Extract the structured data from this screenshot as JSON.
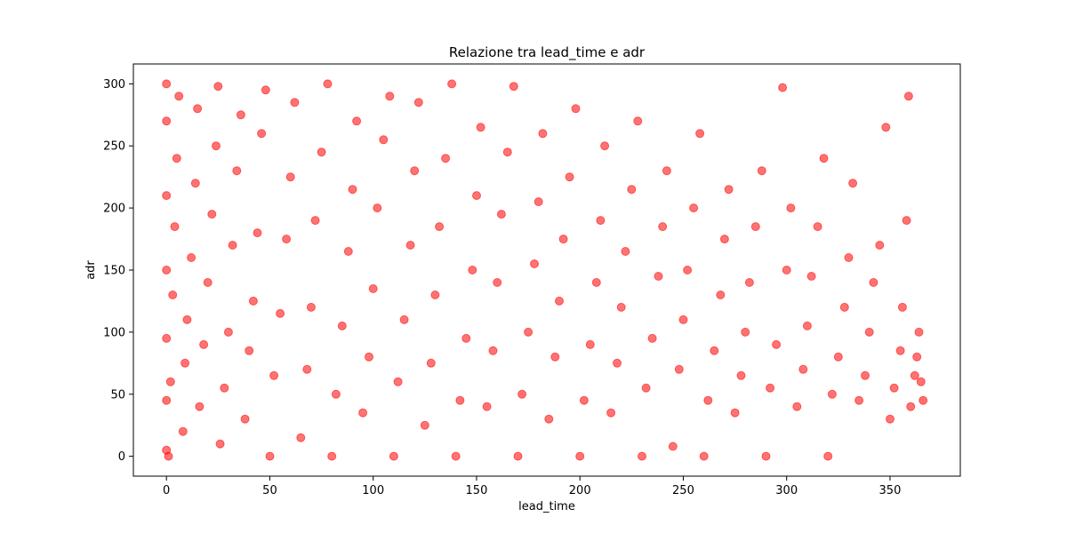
{
  "chart_data": {
    "type": "scatter",
    "title": "Relazione tra lead_time e adr",
    "xlabel": "lead_time",
    "ylabel": "adr",
    "xlim": [
      -16,
      384
    ],
    "ylim": [
      -16,
      316
    ],
    "xticks": [
      0,
      50,
      100,
      150,
      200,
      250,
      300,
      350
    ],
    "yticks": [
      0,
      50,
      100,
      150,
      200,
      250,
      300
    ],
    "grid": false,
    "legend": "none",
    "marker_color": "#ff0000",
    "marker_alpha": 0.55,
    "series": [
      {
        "name": "",
        "points": [
          [
            0,
            5
          ],
          [
            0,
            45
          ],
          [
            0,
            95
          ],
          [
            0,
            150
          ],
          [
            0,
            210
          ],
          [
            0,
            270
          ],
          [
            0,
            300
          ],
          [
            1,
            0
          ],
          [
            2,
            60
          ],
          [
            3,
            130
          ],
          [
            4,
            185
          ],
          [
            5,
            240
          ],
          [
            6,
            290
          ],
          [
            8,
            20
          ],
          [
            9,
            75
          ],
          [
            10,
            110
          ],
          [
            12,
            160
          ],
          [
            14,
            220
          ],
          [
            15,
            280
          ],
          [
            16,
            40
          ],
          [
            18,
            90
          ],
          [
            20,
            140
          ],
          [
            22,
            195
          ],
          [
            24,
            250
          ],
          [
            25,
            298
          ],
          [
            26,
            10
          ],
          [
            28,
            55
          ],
          [
            30,
            100
          ],
          [
            32,
            170
          ],
          [
            34,
            230
          ],
          [
            36,
            275
          ],
          [
            38,
            30
          ],
          [
            40,
            85
          ],
          [
            42,
            125
          ],
          [
            44,
            180
          ],
          [
            46,
            260
          ],
          [
            48,
            295
          ],
          [
            50,
            0
          ],
          [
            52,
            65
          ],
          [
            55,
            115
          ],
          [
            58,
            175
          ],
          [
            60,
            225
          ],
          [
            62,
            285
          ],
          [
            65,
            15
          ],
          [
            68,
            70
          ],
          [
            70,
            120
          ],
          [
            72,
            190
          ],
          [
            75,
            245
          ],
          [
            78,
            300
          ],
          [
            80,
            0
          ],
          [
            82,
            50
          ],
          [
            85,
            105
          ],
          [
            88,
            165
          ],
          [
            90,
            215
          ],
          [
            92,
            270
          ],
          [
            95,
            35
          ],
          [
            98,
            80
          ],
          [
            100,
            135
          ],
          [
            102,
            200
          ],
          [
            105,
            255
          ],
          [
            108,
            290
          ],
          [
            110,
            0
          ],
          [
            112,
            60
          ],
          [
            115,
            110
          ],
          [
            118,
            170
          ],
          [
            120,
            230
          ],
          [
            122,
            285
          ],
          [
            125,
            25
          ],
          [
            128,
            75
          ],
          [
            130,
            130
          ],
          [
            132,
            185
          ],
          [
            135,
            240
          ],
          [
            138,
            300
          ],
          [
            140,
            0
          ],
          [
            142,
            45
          ],
          [
            145,
            95
          ],
          [
            148,
            150
          ],
          [
            150,
            210
          ],
          [
            152,
            265
          ],
          [
            155,
            40
          ],
          [
            158,
            85
          ],
          [
            160,
            140
          ],
          [
            162,
            195
          ],
          [
            165,
            245
          ],
          [
            168,
            298
          ],
          [
            170,
            0
          ],
          [
            172,
            50
          ],
          [
            175,
            100
          ],
          [
            178,
            155
          ],
          [
            180,
            205
          ],
          [
            182,
            260
          ],
          [
            185,
            30
          ],
          [
            188,
            80
          ],
          [
            190,
            125
          ],
          [
            192,
            175
          ],
          [
            195,
            225
          ],
          [
            198,
            280
          ],
          [
            200,
            0
          ],
          [
            202,
            45
          ],
          [
            205,
            90
          ],
          [
            208,
            140
          ],
          [
            210,
            190
          ],
          [
            212,
            250
          ],
          [
            215,
            35
          ],
          [
            218,
            75
          ],
          [
            220,
            120
          ],
          [
            222,
            165
          ],
          [
            225,
            215
          ],
          [
            228,
            270
          ],
          [
            230,
            0
          ],
          [
            232,
            55
          ],
          [
            235,
            95
          ],
          [
            238,
            145
          ],
          [
            240,
            185
          ],
          [
            242,
            230
          ],
          [
            245,
            8
          ],
          [
            248,
            70
          ],
          [
            250,
            110
          ],
          [
            252,
            150
          ],
          [
            255,
            200
          ],
          [
            258,
            260
          ],
          [
            260,
            0
          ],
          [
            262,
            45
          ],
          [
            265,
            85
          ],
          [
            268,
            130
          ],
          [
            270,
            175
          ],
          [
            272,
            215
          ],
          [
            275,
            35
          ],
          [
            278,
            65
          ],
          [
            280,
            100
          ],
          [
            282,
            140
          ],
          [
            285,
            185
          ],
          [
            288,
            230
          ],
          [
            290,
            0
          ],
          [
            292,
            55
          ],
          [
            295,
            90
          ],
          [
            298,
            297
          ],
          [
            300,
            150
          ],
          [
            302,
            200
          ],
          [
            305,
            40
          ],
          [
            308,
            70
          ],
          [
            310,
            105
          ],
          [
            312,
            145
          ],
          [
            315,
            185
          ],
          [
            318,
            240
          ],
          [
            320,
            0
          ],
          [
            322,
            50
          ],
          [
            325,
            80
          ],
          [
            328,
            120
          ],
          [
            330,
            160
          ],
          [
            332,
            220
          ],
          [
            335,
            45
          ],
          [
            338,
            65
          ],
          [
            340,
            100
          ],
          [
            342,
            140
          ],
          [
            345,
            170
          ],
          [
            348,
            265
          ],
          [
            350,
            30
          ],
          [
            352,
            55
          ],
          [
            355,
            85
          ],
          [
            356,
            120
          ],
          [
            358,
            190
          ],
          [
            359,
            290
          ],
          [
            360,
            40
          ],
          [
            362,
            65
          ],
          [
            363,
            80
          ],
          [
            364,
            100
          ],
          [
            365,
            60
          ],
          [
            366,
            45
          ]
        ]
      }
    ]
  }
}
